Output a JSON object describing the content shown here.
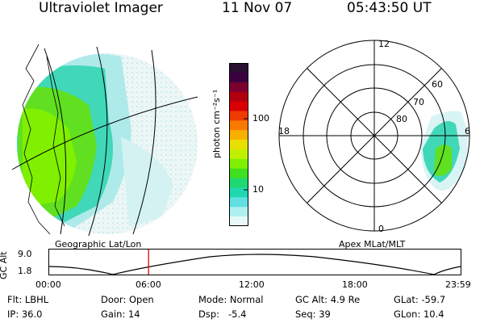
{
  "header": {
    "instrument": "Ultraviolet Imager",
    "date": "11 Nov 07",
    "time": "05:43:50 UT"
  },
  "colorbar": {
    "unit_label": "photon cm⁻²s⁻¹",
    "ticks": [
      "100",
      "10"
    ],
    "colors": [
      "#2a1030",
      "#3a0040",
      "#7a0030",
      "#b00010",
      "#d80000",
      "#ef3a00",
      "#f87a00",
      "#f8b000",
      "#e8e000",
      "#c0f000",
      "#80f000",
      "#40e020",
      "#20d870",
      "#20d8b0",
      "#60e0e0",
      "#b0f0f0",
      "#e8f8f8"
    ]
  },
  "left_map": {
    "caption": "Geographic Lat/Lon"
  },
  "right_map": {
    "caption": "Apex MLat/MLT",
    "mlt_labels": [
      "12",
      "18",
      "6",
      "0"
    ],
    "mlat_labels": [
      "60",
      "70",
      "80"
    ]
  },
  "altitude_plot": {
    "y_label": "GC Alt",
    "y_ticks": [
      "9.0",
      "1.8"
    ],
    "x_ticks": [
      "00:00",
      "06:00",
      "12:00",
      "18:00",
      "23:59"
    ],
    "current_time_fraction": 0.2415
  },
  "status": {
    "flt": "Flt: LBHL",
    "ip": "IP: 36.0",
    "door": "Door: Open",
    "gain": "Gain: 14",
    "mode": "Mode: Normal",
    "dsp": "Dsp:   -5.4",
    "gcalt": "GC Alt: 4.9 Re",
    "seq": "Seq: 39",
    "glat": "GLat: -59.7",
    "glon": "GLon: 10.4"
  }
}
